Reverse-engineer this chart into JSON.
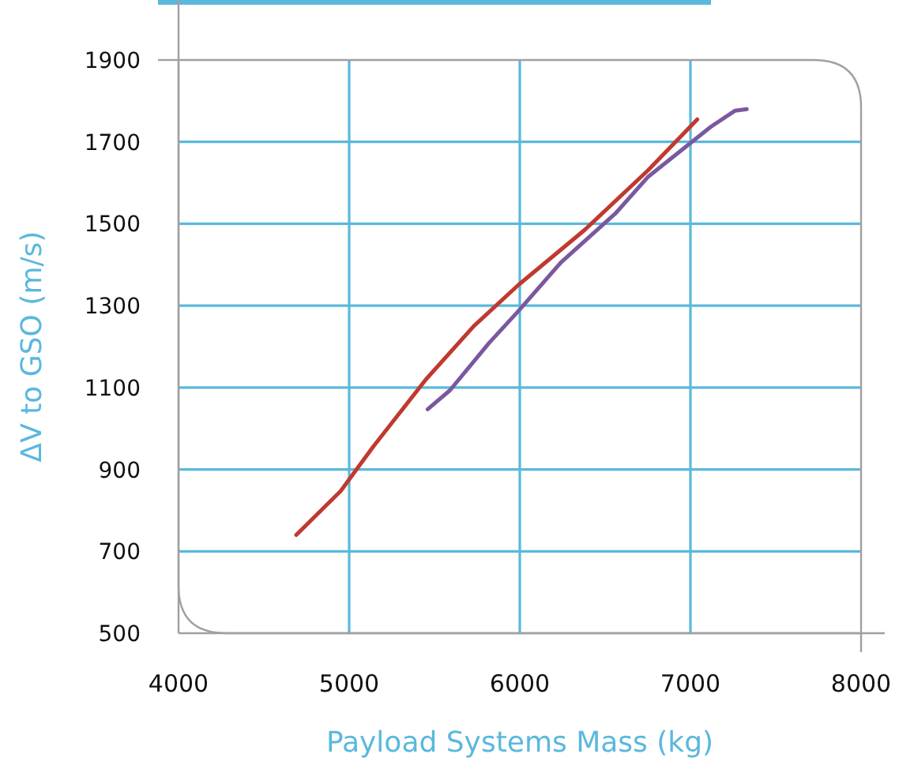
{
  "chart_data": {
    "type": "line",
    "xlabel": "Payload Systems Mass (kg)",
    "ylabel": "ΔV to GSO (m/s)",
    "xlim": [
      4000,
      8000
    ],
    "xticks": [
      4000,
      5000,
      6000,
      7000,
      8000
    ],
    "ylim": [
      500,
      1900
    ],
    "yticks": [
      500,
      700,
      900,
      1100,
      1300,
      1500,
      1700,
      1900
    ],
    "grid": true,
    "line_style": "solid",
    "marker": "none",
    "series": [
      {
        "color": "#c0392f",
        "x": [
          4690,
          4950,
          5140,
          5450,
          5730,
          5990,
          6380,
          6750,
          7040
        ],
        "values": [
          740,
          847,
          955,
          1120,
          1250,
          1350,
          1485,
          1630,
          1755
        ]
      },
      {
        "color": "#7a58a0",
        "x": [
          5460,
          5590,
          5820,
          5990,
          6240,
          6560,
          6750,
          7120,
          7260,
          7330
        ],
        "values": [
          1047,
          1093,
          1209,
          1286,
          1405,
          1525,
          1614,
          1737,
          1776,
          1780
        ]
      }
    ]
  }
}
